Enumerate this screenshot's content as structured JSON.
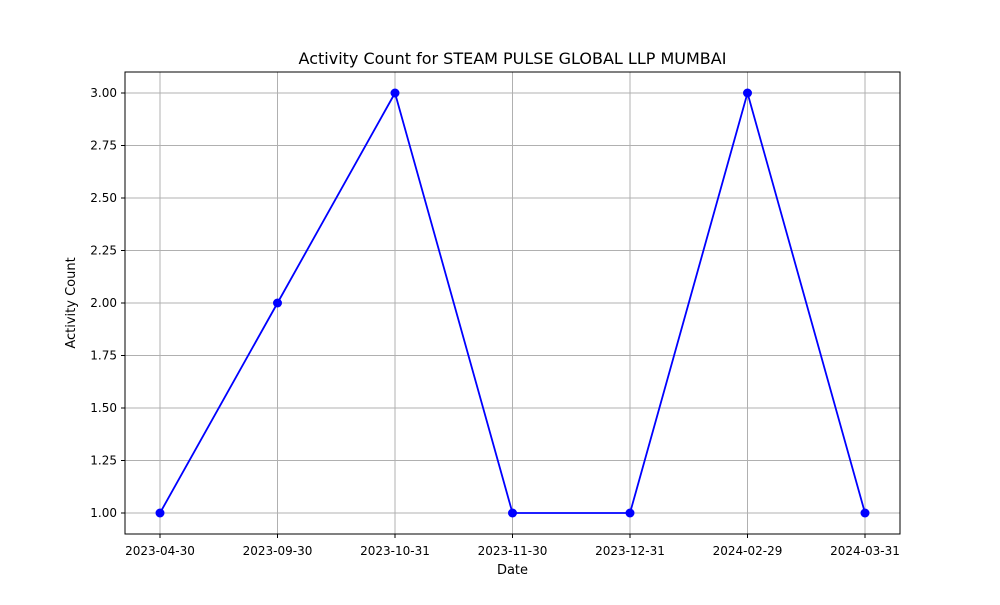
{
  "chart_data": {
    "type": "line",
    "title": "Activity Count for STEAM  PULSE GLOBAL LLP MUMBAI",
    "xlabel": "Date",
    "ylabel": "Activity Count",
    "categories": [
      "2023-04-30",
      "2023-09-30",
      "2023-10-31",
      "2023-11-30",
      "2023-12-31",
      "2024-02-29",
      "2024-03-31"
    ],
    "series": [
      {
        "values": [
          1,
          2,
          3,
          1,
          1,
          3,
          1
        ],
        "color": "#0000ff",
        "marker": "circle"
      }
    ],
    "ylim": [
      0.9,
      3.1
    ],
    "yticks": [
      1.0,
      1.25,
      1.5,
      1.75,
      2.0,
      2.25,
      2.5,
      2.75,
      3.0
    ],
    "ytick_labels": [
      "1.00",
      "1.25",
      "1.50",
      "1.75",
      "2.00",
      "2.25",
      "2.50",
      "2.75",
      "3.00"
    ],
    "grid": true,
    "colors": {
      "line": "#0000ff",
      "grid": "#b0b0b0",
      "axes": "#000000"
    }
  }
}
